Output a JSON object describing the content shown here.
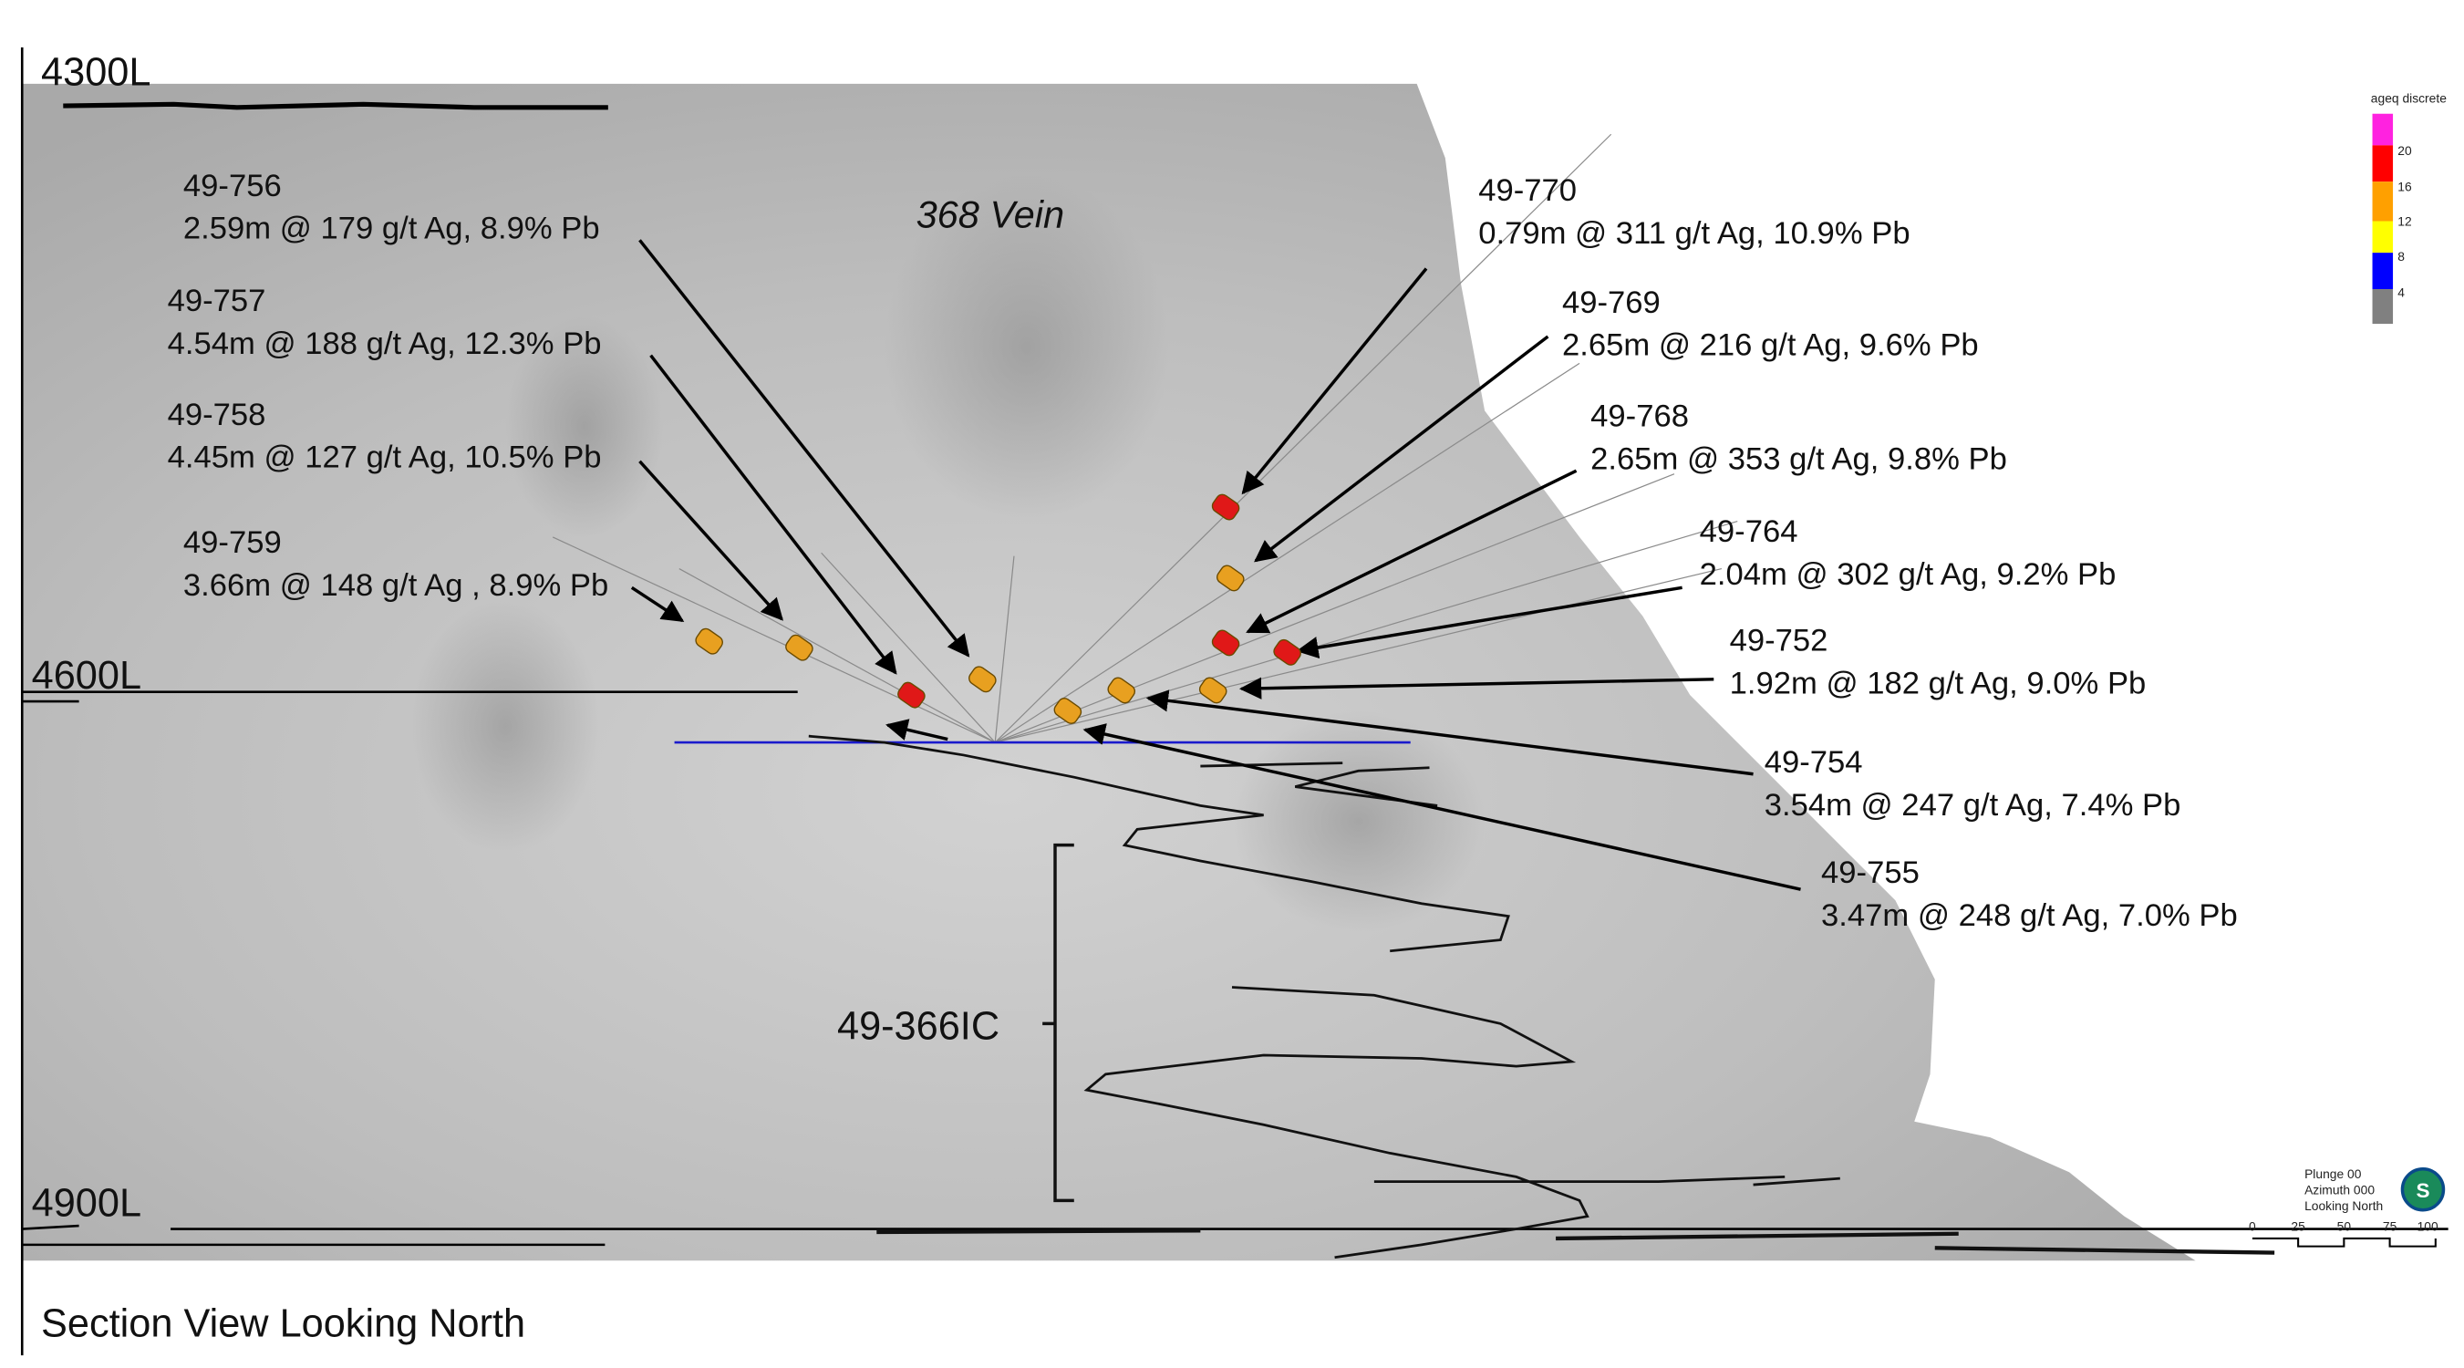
{
  "levels": [
    "4300L",
    "4600L",
    "4900L"
  ],
  "vein_label": "368 Vein",
  "intercepts": [
    {
      "hole": "49-756",
      "result": "2.59m @ 179 g/t Ag, 8.9% Pb"
    },
    {
      "hole": "49-757",
      "result": "4.54m @ 188 g/t Ag, 12.3% Pb"
    },
    {
      "hole": "49-758",
      "result": "4.45m @ 127 g/t Ag, 10.5% Pb"
    },
    {
      "hole": "49-759",
      "result": "3.66m @ 148 g/t Ag , 8.9% Pb"
    },
    {
      "hole": "49-770",
      "result": "0.79m @ 311 g/t Ag, 10.9% Pb"
    },
    {
      "hole": "49-769",
      "result": "2.65m @ 216 g/t Ag, 9.6% Pb"
    },
    {
      "hole": "49-768",
      "result": "2.65m @ 353 g/t Ag, 9.8% Pb"
    },
    {
      "hole": "49-764",
      "result": "2.04m @ 302 g/t Ag, 9.2% Pb"
    },
    {
      "hole": "49-752",
      "result": "1.92m @ 182 g/t Ag, 9.0% Pb"
    },
    {
      "hole": "49-754",
      "result": "3.54m @ 247 g/t Ag, 7.4% Pb"
    },
    {
      "hole": "49-755",
      "result": "3.47m @ 248 g/t Ag, 7.0% Pb"
    }
  ],
  "hole_label": "49-366IC",
  "legend": {
    "title": "ageq discrete",
    "ticks": [
      "20",
      "16",
      "12",
      "8",
      "4"
    ]
  },
  "view_info": [
    "Plunge 00",
    "Azimuth 000",
    "Looking North"
  ],
  "scale_bar": [
    "0",
    "25",
    "50",
    "75",
    "100"
  ],
  "caption": "Section View Looking North"
}
